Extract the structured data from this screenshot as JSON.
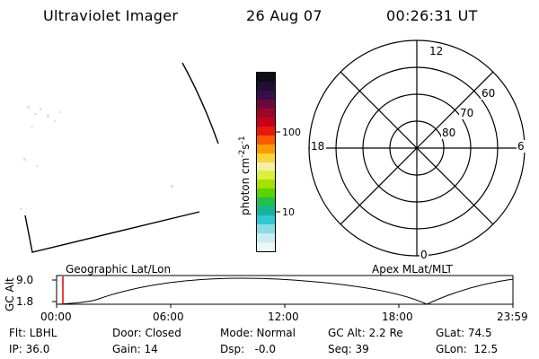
{
  "header": {
    "title": "Ultraviolet Imager",
    "date": "26 Aug 07",
    "time": "00:26:31 UT"
  },
  "colorbar": {
    "label_main": "photon cm",
    "label_exp1": "-2",
    "label_mid": "s",
    "label_exp2": "-1",
    "ticks": [
      "100",
      "10"
    ],
    "colors": [
      "#0d0d1a",
      "#1f1030",
      "#3b0d4a",
      "#6a0a3c",
      "#9a0828",
      "#c8001c",
      "#e8180e",
      "#f85a00",
      "#fb9c00",
      "#fbd33a",
      "#f3f0a8",
      "#d9f03c",
      "#a8e000",
      "#58d400",
      "#20c050",
      "#14b49a",
      "#30c8d4",
      "#8adce4",
      "#c8ecf0",
      "#ecf6f6"
    ]
  },
  "polar": {
    "lat_labels": [
      "80",
      "70",
      "60"
    ],
    "mlt_labels": {
      "top": "12",
      "left": "18",
      "right": "6",
      "bottom": "0"
    }
  },
  "timeline": {
    "ylabel": "GC Alt",
    "y_ticks": [
      "9.0",
      "1.8"
    ],
    "left_title": "Geographic Lat/Lon",
    "right_title": "Apex MLat/MLT",
    "x_ticks": [
      "00:00",
      "06:00",
      "12:00",
      "18:00",
      "23:59"
    ],
    "marker_color": "#e00000"
  },
  "info": {
    "row1": [
      "Flt: LBHL",
      "Door: Closed",
      "Mode: Normal",
      "GC Alt: 2.2 Re",
      "GLat: 74.5"
    ],
    "row2": [
      "IP: 36.0",
      "Gain: 14",
      "Dsp:   -0.0",
      "Seq: 39",
      "GLon:  12.5"
    ]
  }
}
